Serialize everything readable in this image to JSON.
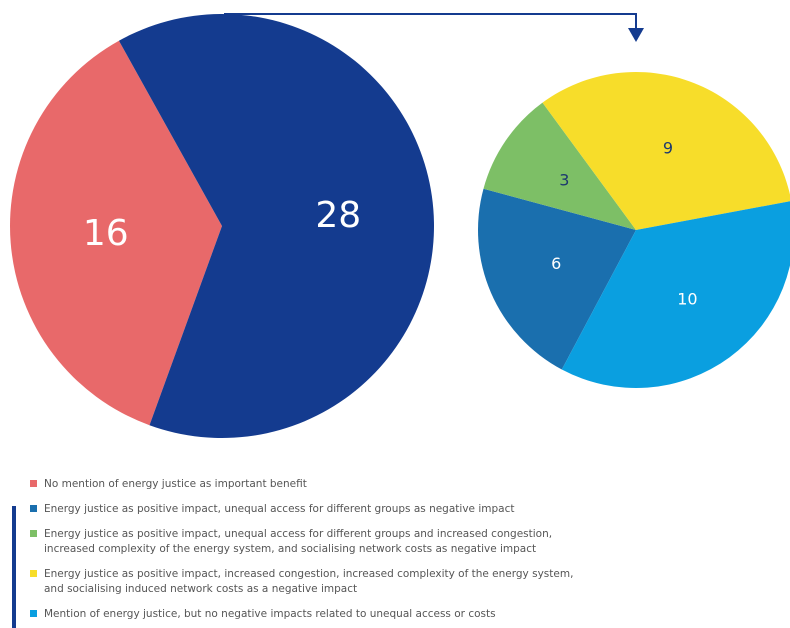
{
  "chart_data": [
    {
      "type": "pie",
      "categories": [
        "No mention of energy justice as important benefit",
        null
      ],
      "values": [
        16,
        28
      ],
      "colors": [
        "#e8696a",
        "#143b8f"
      ]
    },
    {
      "type": "pie",
      "categories": [
        [
          "Energy justice as positive impact, unequal access for different groups as negative impact"
        ],
        [
          "Energy justice as positive impact, unequal access for different groups and increased congestion,",
          "increased complexity of the energy system, and socialising network costs as negative impact"
        ],
        [
          "Energy justice as positive impact, increased congestion, increased complexity of the energy system,",
          "and socialising induced network costs as a negative impact"
        ],
        [
          "Mention of energy justice, but no negative impacts related to unequal access or costs"
        ]
      ],
      "values": [
        6,
        3,
        9,
        10
      ],
      "colors": [
        "#1a6fae",
        "#7dbf66",
        "#f7dd2a",
        "#0a9fe0"
      ]
    }
  ]
}
